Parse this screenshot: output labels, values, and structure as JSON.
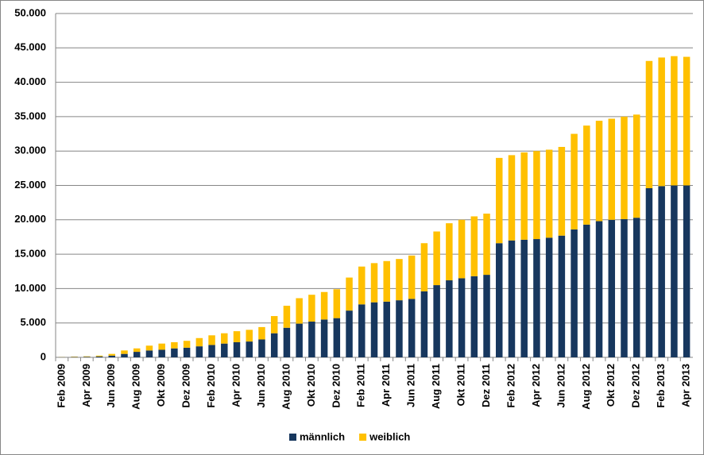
{
  "chart_data": {
    "type": "stacked_bar",
    "categories": [
      "Feb 2009",
      null,
      "Apr 2009",
      null,
      "Jun 2009",
      null,
      "Aug 2009",
      null,
      "Okt 2009",
      null,
      "Dez 2009",
      null,
      "Feb 2010",
      null,
      "Apr 2010",
      null,
      "Jun 2010",
      null,
      "Aug 2010",
      null,
      "Okt 2010",
      null,
      "Dez 2010",
      null,
      "Feb 2011",
      null,
      "Apr 2011",
      null,
      "Jun 2011",
      null,
      "Aug 2011",
      null,
      "Okt 2011",
      null,
      "Dez 2011",
      null,
      "Feb 2012",
      null,
      "Apr 2012",
      null,
      "Jun 2012",
      null,
      "Aug 2012",
      null,
      "Okt 2012",
      null,
      "Dez 2012",
      null,
      "Feb 2013",
      null,
      "Apr 2013"
    ],
    "series": [
      {
        "name": "männlich",
        "color": "#17375e",
        "values": [
          30,
          50,
          80,
          130,
          250,
          500,
          800,
          1000,
          1100,
          1300,
          1400,
          1600,
          1800,
          2000,
          2200,
          2300,
          2600,
          3500,
          4300,
          4900,
          5200,
          5500,
          5700,
          6800,
          7700,
          8000,
          8100,
          8300,
          8500,
          9600,
          10500,
          11200,
          11500,
          11800,
          12000,
          16600,
          17000,
          17100,
          17200,
          17400,
          17700,
          18600,
          19300,
          19800,
          20000,
          20100,
          20300,
          24600,
          24900,
          25000,
          25000
        ]
      },
      {
        "name": "weiblich",
        "color": "#ffc000",
        "values": [
          20,
          50,
          70,
          120,
          250,
          500,
          500,
          700,
          900,
          900,
          1000,
          1200,
          1400,
          1500,
          1600,
          1700,
          1800,
          2500,
          3200,
          3700,
          3900,
          4000,
          4200,
          4800,
          5500,
          5700,
          5900,
          6000,
          6300,
          7000,
          7800,
          8300,
          8500,
          8700,
          8900,
          12400,
          12400,
          12700,
          12800,
          12800,
          12900,
          13900,
          14400,
          14600,
          14700,
          14900,
          15000,
          18500,
          18700,
          18800,
          18700
        ]
      }
    ],
    "ylim": [
      0,
      50000
    ],
    "yticks": [
      0,
      {
        "value": 5000,
        "label": "5.000"
      },
      {
        "value": 10000,
        "label": "10.000"
      },
      {
        "value": 15000,
        "label": "15.000"
      },
      {
        "value": 20000,
        "label": "20.000"
      },
      {
        "value": 25000,
        "label": "25.000"
      },
      {
        "value": 30000,
        "label": "30.000"
      },
      {
        "value": 35000,
        "label": "35.000"
      },
      {
        "value": 40000,
        "label": "40.000"
      },
      {
        "value": 45000,
        "label": "45.000"
      },
      {
        "value": 50000,
        "label": "50.000"
      }
    ],
    "grid": true,
    "legend": "bottom"
  }
}
